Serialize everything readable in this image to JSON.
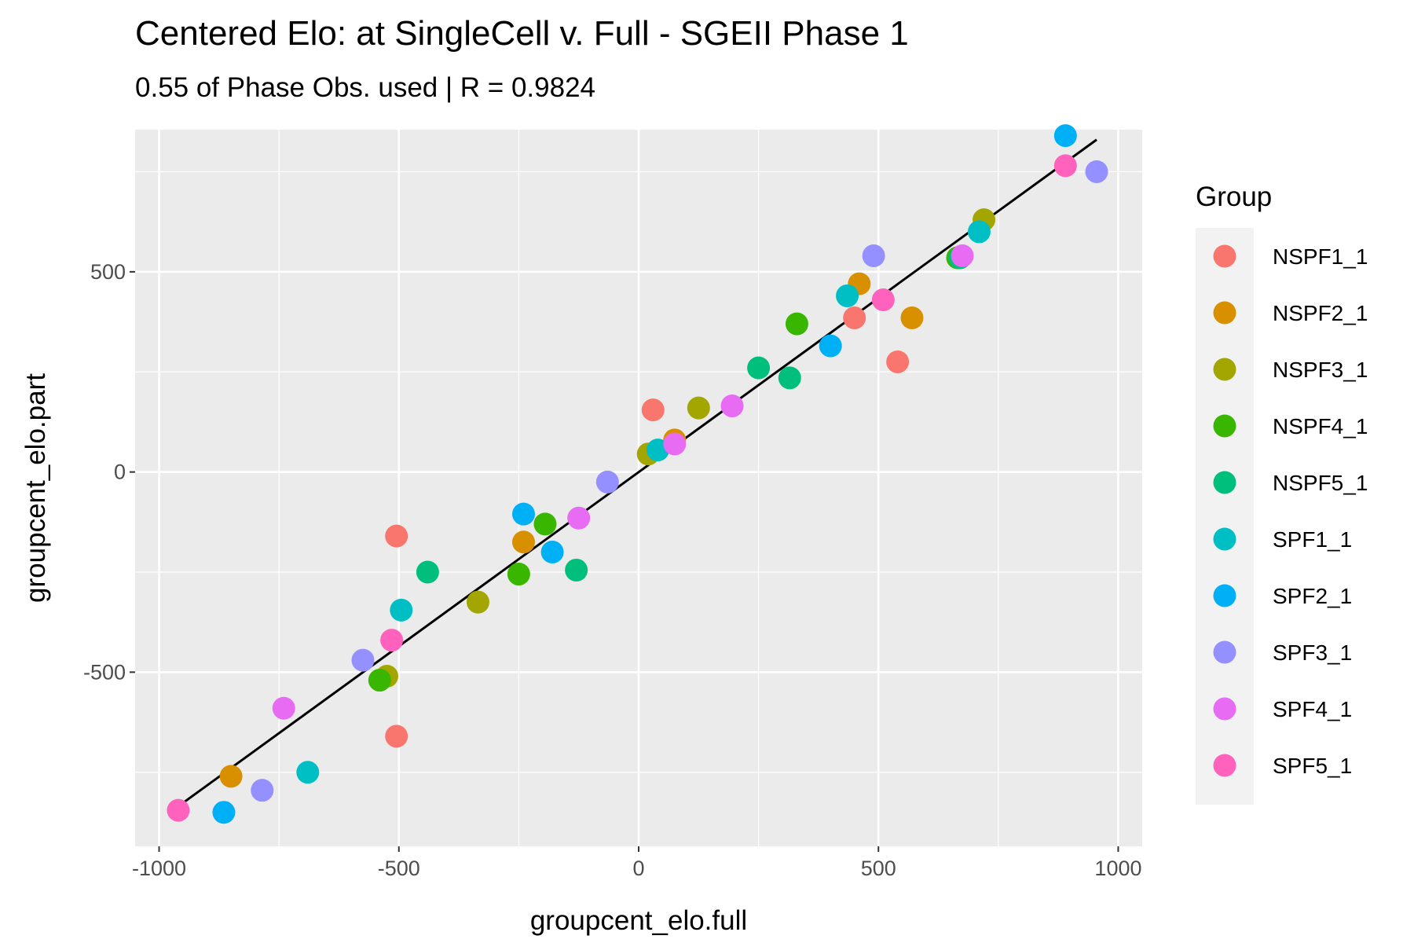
{
  "chart_data": {
    "type": "scatter",
    "title": "Centered Elo: at SingleCell v. Full - SGEII Phase 1",
    "subtitle": "0.55 of Phase Obs. used | R = 0.9824",
    "xlabel": "groupcent_elo.full",
    "ylabel": "groupcent_elo.part",
    "xlim": [
      -1050,
      1050
    ],
    "ylim": [
      -935,
      855
    ],
    "x_ticks": [
      -1000,
      -500,
      0,
      500,
      1000
    ],
    "x_tick_labels": [
      "-1000",
      "-500",
      "0",
      "500",
      "1000"
    ],
    "y_ticks": [
      -500,
      0,
      500
    ],
    "y_tick_labels": [
      "-500",
      "0",
      "500"
    ],
    "grid": true,
    "legend_title": "Group",
    "legend_position": "right",
    "fit_line": {
      "x": [
        -960,
        955
      ],
      "y": [
        -835,
        830
      ]
    },
    "series": [
      {
        "name": "NSPF1_1",
        "color": "#F8766D",
        "points": [
          [
            -505,
            -160
          ],
          [
            -505,
            -660
          ],
          [
            30,
            155
          ],
          [
            450,
            385
          ],
          [
            540,
            275
          ]
        ]
      },
      {
        "name": "NSPF2_1",
        "color": "#D89000",
        "points": [
          [
            -850,
            -760
          ],
          [
            -240,
            -175
          ],
          [
            75,
            80
          ],
          [
            460,
            470
          ],
          [
            570,
            385
          ]
        ]
      },
      {
        "name": "NSPF3_1",
        "color": "#A3A500",
        "points": [
          [
            -525,
            -510
          ],
          [
            -335,
            -325
          ],
          [
            20,
            45
          ],
          [
            125,
            160
          ],
          [
            720,
            630
          ]
        ]
      },
      {
        "name": "NSPF4_1",
        "color": "#39B600",
        "points": [
          [
            -540,
            -520
          ],
          [
            -195,
            -130
          ],
          [
            -250,
            -255
          ],
          [
            330,
            370
          ],
          [
            665,
            535
          ]
        ]
      },
      {
        "name": "NSPF5_1",
        "color": "#00BF7D",
        "points": [
          [
            -440,
            -250
          ],
          [
            -130,
            -245
          ],
          [
            250,
            260
          ],
          [
            315,
            235
          ],
          [
            670,
            535
          ]
        ]
      },
      {
        "name": "SPF1_1",
        "color": "#00BFC4",
        "points": [
          [
            -690,
            -750
          ],
          [
            -495,
            -345
          ],
          [
            40,
            55
          ],
          [
            435,
            440
          ],
          [
            710,
            600
          ]
        ]
      },
      {
        "name": "SPF2_1",
        "color": "#00B0F6",
        "points": [
          [
            -865,
            -850
          ],
          [
            -240,
            -105
          ],
          [
            -180,
            -200
          ],
          [
            400,
            315
          ],
          [
            890,
            840
          ]
        ]
      },
      {
        "name": "SPF3_1",
        "color": "#9590FF",
        "points": [
          [
            -785,
            -795
          ],
          [
            -575,
            -470
          ],
          [
            -65,
            -25
          ],
          [
            490,
            540
          ],
          [
            955,
            750
          ]
        ]
      },
      {
        "name": "SPF4_1",
        "color": "#E76BF3",
        "points": [
          [
            -740,
            -590
          ],
          [
            -125,
            -115
          ],
          [
            195,
            165
          ],
          [
            675,
            540
          ],
          [
            75,
            70
          ]
        ]
      },
      {
        "name": "SPF5_1",
        "color": "#FF62BC",
        "points": [
          [
            -960,
            -845
          ],
          [
            -515,
            -420
          ],
          [
            510,
            430
          ],
          [
            890,
            765
          ]
        ]
      }
    ]
  }
}
